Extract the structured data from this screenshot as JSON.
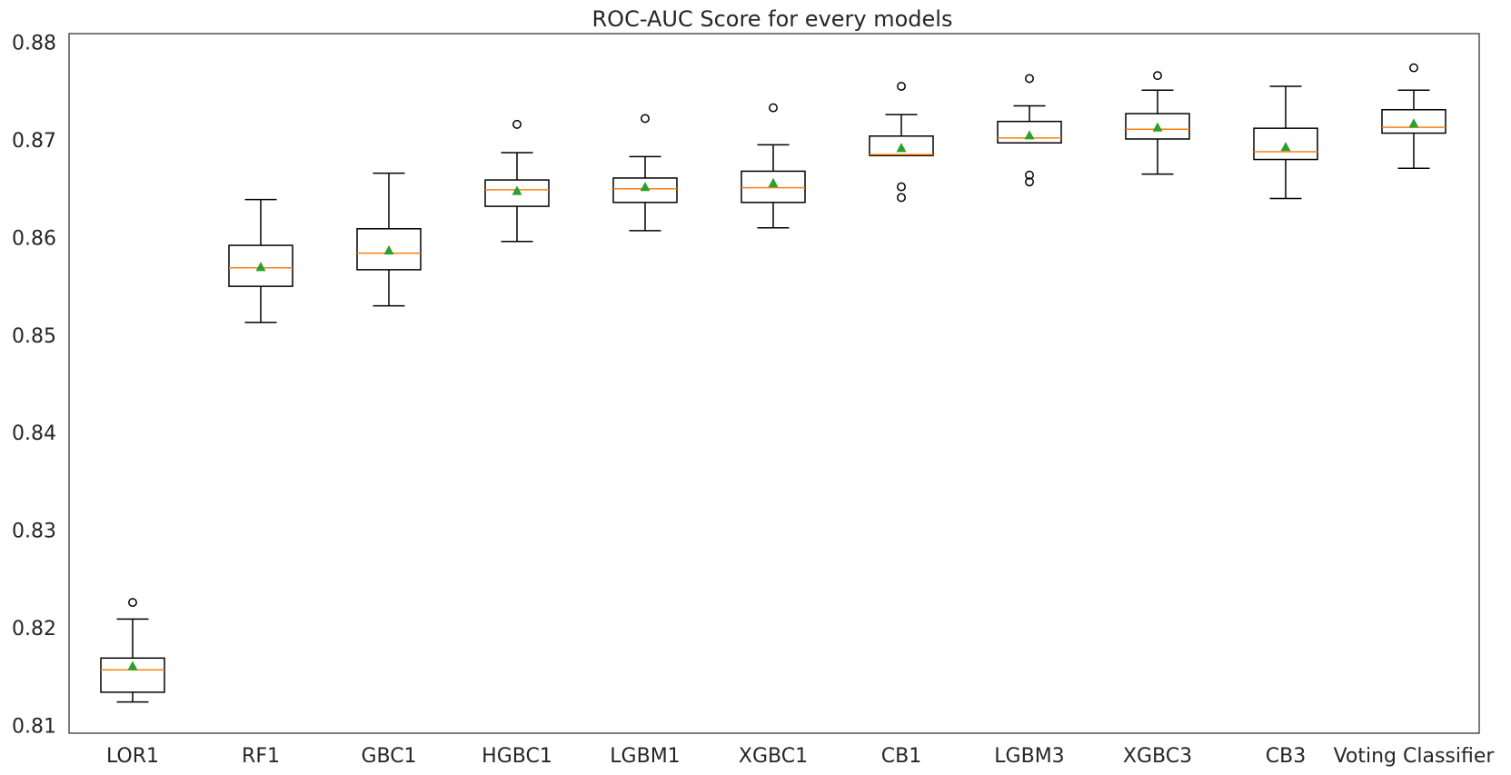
{
  "chart_data": {
    "type": "box",
    "title": "ROC-AUC Score for every models",
    "xlabel": "",
    "ylabel": "",
    "ylim": [
      0.8092,
      0.8809
    ],
    "yticks": [
      "0.81",
      "0.82",
      "0.83",
      "0.84",
      "0.85",
      "0.86",
      "0.87",
      "0.88"
    ],
    "grid": false,
    "legend": "none",
    "colors": {
      "box": "#000000",
      "median": "#ff7f0e",
      "mean": "#2ca02c",
      "axes": "#262626"
    },
    "categories": [
      "LOR1",
      "RF1",
      "GBC1",
      "HGBC1",
      "LGBM1",
      "XGBC1",
      "CB1",
      "LGBM3",
      "XGBC3",
      "CB3",
      "Voting Classifier"
    ],
    "boxes": [
      {
        "label": "LOR1",
        "whislo": 0.8124,
        "q1": 0.8134,
        "med": 0.8157,
        "q3": 0.8169,
        "whishi": 0.8209,
        "mean": 0.8161,
        "fliers": [
          0.8226
        ]
      },
      {
        "label": "RF1",
        "whislo": 0.8513,
        "q1": 0.855,
        "med": 0.8569,
        "q3": 0.8592,
        "whishi": 0.8639,
        "mean": 0.857,
        "fliers": []
      },
      {
        "label": "GBC1",
        "whislo": 0.853,
        "q1": 0.8567,
        "med": 0.8584,
        "q3": 0.8609,
        "whishi": 0.8666,
        "mean": 0.8587,
        "fliers": []
      },
      {
        "label": "HGBC1",
        "whislo": 0.8596,
        "q1": 0.8632,
        "med": 0.8649,
        "q3": 0.8659,
        "whishi": 0.8687,
        "mean": 0.8648,
        "fliers": [
          0.8716
        ]
      },
      {
        "label": "LGBM1",
        "whislo": 0.8607,
        "q1": 0.8636,
        "med": 0.865,
        "q3": 0.8661,
        "whishi": 0.8683,
        "mean": 0.8652,
        "fliers": [
          0.8722
        ]
      },
      {
        "label": "XGBC1",
        "whislo": 0.861,
        "q1": 0.8636,
        "med": 0.8651,
        "q3": 0.8668,
        "whishi": 0.8695,
        "mean": 0.8656,
        "fliers": [
          0.8733
        ]
      },
      {
        "label": "CB1",
        "whislo": 0.8684,
        "q1": 0.8684,
        "med": 0.8685,
        "q3": 0.8704,
        "whishi": 0.8726,
        "mean": 0.8692,
        "fliers": [
          0.8641,
          0.8652,
          0.8755
        ]
      },
      {
        "label": "LGBM3",
        "whislo": 0.8697,
        "q1": 0.8697,
        "med": 0.8702,
        "q3": 0.8719,
        "whishi": 0.8735,
        "mean": 0.8705,
        "fliers": [
          0.8657,
          0.8664,
          0.8763
        ]
      },
      {
        "label": "XGBC3",
        "whislo": 0.8665,
        "q1": 0.8701,
        "med": 0.8711,
        "q3": 0.8727,
        "whishi": 0.8751,
        "mean": 0.8713,
        "fliers": [
          0.8766
        ]
      },
      {
        "label": "CB3",
        "whislo": 0.864,
        "q1": 0.868,
        "med": 0.8688,
        "q3": 0.8712,
        "whishi": 0.8755,
        "mean": 0.8693,
        "fliers": []
      },
      {
        "label": "Voting Classifier",
        "whislo": 0.8671,
        "q1": 0.8707,
        "med": 0.8713,
        "q3": 0.8731,
        "whishi": 0.8751,
        "mean": 0.8717,
        "fliers": [
          0.8774
        ]
      }
    ]
  }
}
